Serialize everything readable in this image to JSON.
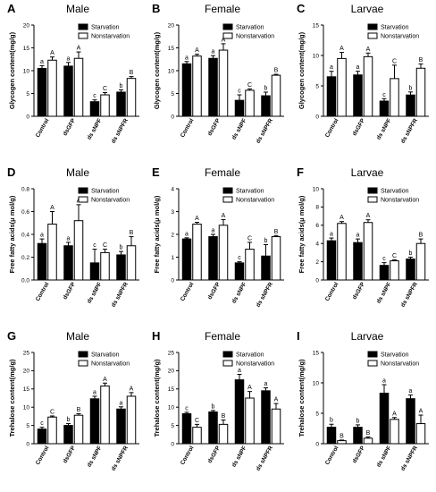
{
  "figure": {
    "panels": [
      {
        "letter": "A",
        "title": "Male",
        "chart_data": {
          "type": "bar",
          "categories": [
            "Control",
            "dsGFP",
            "ds sNPF",
            "ds sNPFR"
          ],
          "ylabel": "Glycogen content(mg/g)",
          "ylim": [
            0,
            20
          ],
          "yticks": [
            0,
            5,
            10,
            15,
            20
          ],
          "legend": "top-right",
          "series": [
            {
              "name": "Starvation",
              "values": [
                10.5,
                11.0,
                3.2,
                5.3
              ],
              "errors": [
                0.6,
                0.8,
                0.4,
                0.5
              ],
              "letters": [
                "a",
                "a",
                "c",
                "b"
              ],
              "color": "#000000"
            },
            {
              "name": "Nonstarvation",
              "values": [
                12.3,
                12.7,
                4.7,
                8.3
              ],
              "errors": [
                0.7,
                1.4,
                0.5,
                0.4
              ],
              "letters": [
                "A",
                "A",
                "C",
                "B"
              ],
              "color": "#ffffff"
            }
          ]
        }
      },
      {
        "letter": "B",
        "title": "Female",
        "chart_data": {
          "type": "bar",
          "categories": [
            "Control",
            "dsGFP",
            "ds sNPF",
            "ds sNPFR"
          ],
          "ylabel": "Glycogen content(mg/g)",
          "ylim": [
            0,
            20
          ],
          "yticks": [
            0,
            5,
            10,
            15,
            20
          ],
          "legend": "top-right",
          "series": [
            {
              "name": "Starvation",
              "values": [
                11.5,
                12.7,
                3.5,
                4.5
              ],
              "errors": [
                0.5,
                0.6,
                1.2,
                0.8
              ],
              "letters": [
                "a",
                "a",
                "c",
                "b"
              ],
              "color": "#000000"
            },
            {
              "name": "Nonstarvation",
              "values": [
                13.2,
                14.5,
                5.7,
                9.0
              ],
              "errors": [
                0.4,
                1.4,
                0.3,
                0.2
              ],
              "letters": [
                "A",
                "A",
                "C",
                "B"
              ],
              "color": "#ffffff"
            }
          ]
        }
      },
      {
        "letter": "C",
        "title": "Larvae",
        "chart_data": {
          "type": "bar",
          "categories": [
            "Control",
            "dsGFP",
            "ds sNPF",
            "ds sNPFR"
          ],
          "ylabel": "Glycogen content(mg/g)",
          "ylim": [
            0,
            15
          ],
          "yticks": [
            0,
            5,
            10,
            15
          ],
          "legend": "top-right",
          "series": [
            {
              "name": "Starvation",
              "values": [
                6.5,
                6.8,
                2.5,
                3.5
              ],
              "errors": [
                0.9,
                0.6,
                0.4,
                0.5
              ],
              "letters": [
                "a",
                "a",
                "c",
                "b"
              ],
              "color": "#000000"
            },
            {
              "name": "Nonstarvation",
              "values": [
                9.5,
                9.8,
                6.2,
                7.9
              ],
              "errors": [
                1.0,
                0.6,
                2.2,
                0.7
              ],
              "letters": [
                "A",
                "A",
                "C",
                "B"
              ],
              "color": "#ffffff"
            }
          ]
        }
      },
      {
        "letter": "D",
        "title": "Male",
        "chart_data": {
          "type": "bar",
          "categories": [
            "Control",
            "dsGFP",
            "ds sNPF",
            "ds sNPFR"
          ],
          "ylabel": "Free fatty acids(μ mol/g)",
          "ylim": [
            0,
            0.8
          ],
          "yticks": [
            0.0,
            0.2,
            0.4,
            0.6,
            0.8
          ],
          "legend": "top-right",
          "series": [
            {
              "name": "Starvation",
              "values": [
                0.32,
                0.3,
                0.15,
                0.22
              ],
              "errors": [
                0.04,
                0.03,
                0.12,
                0.03
              ],
              "letters": [
                "a",
                "a",
                "c",
                "b"
              ],
              "color": "#000000"
            },
            {
              "name": "Nonstarvation",
              "values": [
                0.49,
                0.52,
                0.24,
                0.3
              ],
              "errors": [
                0.11,
                0.14,
                0.03,
                0.08
              ],
              "letters": [
                "A",
                "A",
                "C",
                "B"
              ],
              "color": "#ffffff"
            }
          ]
        }
      },
      {
        "letter": "E",
        "title": "Female",
        "chart_data": {
          "type": "bar",
          "categories": [
            "Control",
            "dsGFP",
            "ds sNPF",
            "ds sNPFR"
          ],
          "ylabel": "Free fatty acids(μ mol/g)",
          "ylim": [
            0,
            4
          ],
          "yticks": [
            0,
            1,
            2,
            3,
            4
          ],
          "legend": "top-right",
          "series": [
            {
              "name": "Starvation",
              "values": [
                1.8,
                1.9,
                0.75,
                1.05
              ],
              "errors": [
                0.05,
                0.1,
                0.05,
                0.5
              ],
              "letters": [
                "a",
                "a",
                "c",
                "b"
              ],
              "color": "#000000"
            },
            {
              "name": "Nonstarvation",
              "values": [
                2.45,
                2.4,
                1.35,
                1.9
              ],
              "errors": [
                0.08,
                0.25,
                0.3,
                0.05
              ],
              "letters": [
                "A",
                "A",
                "C",
                "B"
              ],
              "color": "#ffffff"
            }
          ]
        }
      },
      {
        "letter": "F",
        "title": "Larvae",
        "chart_data": {
          "type": "bar",
          "categories": [
            "Control",
            "dsGFP",
            "ds sNPF",
            "ds sNPFR"
          ],
          "ylabel": "Free fatty acids(μ mol/g)",
          "ylim": [
            0,
            10
          ],
          "yticks": [
            0,
            2,
            4,
            6,
            8,
            10
          ],
          "legend": "top-right",
          "series": [
            {
              "name": "Starvation",
              "values": [
                4.3,
                4.1,
                1.6,
                2.3
              ],
              "errors": [
                0.3,
                0.4,
                0.3,
                0.2
              ],
              "letters": [
                "a",
                "a",
                "c",
                "b"
              ],
              "color": "#000000"
            },
            {
              "name": "Nonstarvation",
              "values": [
                6.2,
                6.3,
                2.1,
                4.0
              ],
              "errors": [
                0.2,
                0.3,
                0.1,
                0.5
              ],
              "letters": [
                "A",
                "A",
                "C",
                "B"
              ],
              "color": "#ffffff"
            }
          ]
        }
      },
      {
        "letter": "G",
        "title": "Male",
        "chart_data": {
          "type": "bar",
          "categories": [
            "Control",
            "dsGFP",
            "ds sNPF",
            "ds sNPFR"
          ],
          "ylabel": "Trehalose content(mg/g)",
          "ylim": [
            0,
            25
          ],
          "yticks": [
            0,
            5,
            10,
            15,
            20,
            25
          ],
          "legend": "top-right",
          "series": [
            {
              "name": "Starvation",
              "values": [
                4.0,
                5.0,
                12.3,
                9.5
              ],
              "errors": [
                0.5,
                0.5,
                0.7,
                0.6
              ],
              "letters": [
                "c",
                "b",
                "a",
                "a"
              ],
              "color": "#000000"
            },
            {
              "name": "Nonstarvation",
              "values": [
                7.3,
                7.8,
                15.8,
                13.0
              ],
              "errors": [
                0.3,
                0.4,
                0.8,
                1.0
              ],
              "letters": [
                "C",
                "B",
                "A",
                "A"
              ],
              "color": "#ffffff"
            }
          ]
        }
      },
      {
        "letter": "H",
        "title": "Female",
        "chart_data": {
          "type": "bar",
          "categories": [
            "Control",
            "dsGFP",
            "ds sNPF",
            "ds sNPFR"
          ],
          "ylabel": "Trehalose content(mg/g)",
          "ylim": [
            0,
            25
          ],
          "yticks": [
            0,
            5,
            10,
            15,
            20,
            25
          ],
          "legend": "top-right",
          "series": [
            {
              "name": "Starvation",
              "values": [
                8.2,
                8.7,
                17.5,
                14.5
              ],
              "errors": [
                0.4,
                0.4,
                1.5,
                0.8
              ],
              "letters": [
                "c",
                "b",
                "a",
                "a"
              ],
              "color": "#000000"
            },
            {
              "name": "Nonstarvation",
              "values": [
                4.5,
                5.3,
                12.5,
                9.5
              ],
              "errors": [
                0.8,
                1.2,
                1.8,
                1.5
              ],
              "letters": [
                "C",
                "B",
                "A",
                "A"
              ],
              "color": "#ffffff"
            }
          ]
        }
      },
      {
        "letter": "I",
        "title": "Larvae",
        "chart_data": {
          "type": "bar",
          "categories": [
            "Control",
            "dsGFP",
            "ds sNPF",
            "ds sNPFR"
          ],
          "ylabel": "Trehalose content(mg/g)",
          "ylim": [
            0,
            15
          ],
          "yticks": [
            0,
            5,
            10,
            15
          ],
          "legend": "top-right",
          "series": [
            {
              "name": "Starvation",
              "values": [
                2.7,
                2.7,
                8.3,
                7.4
              ],
              "errors": [
                0.5,
                0.4,
                1.4,
                0.6
              ],
              "letters": [
                "b",
                "b",
                "a",
                "a"
              ],
              "color": "#000000"
            },
            {
              "name": "Nonstarvation",
              "values": [
                0.5,
                0.9,
                4.0,
                3.3
              ],
              "errors": [
                0.1,
                0.2,
                0.3,
                1.4
              ],
              "letters": [
                "B",
                "B",
                "A",
                "A"
              ],
              "color": "#ffffff"
            }
          ]
        }
      }
    ]
  }
}
